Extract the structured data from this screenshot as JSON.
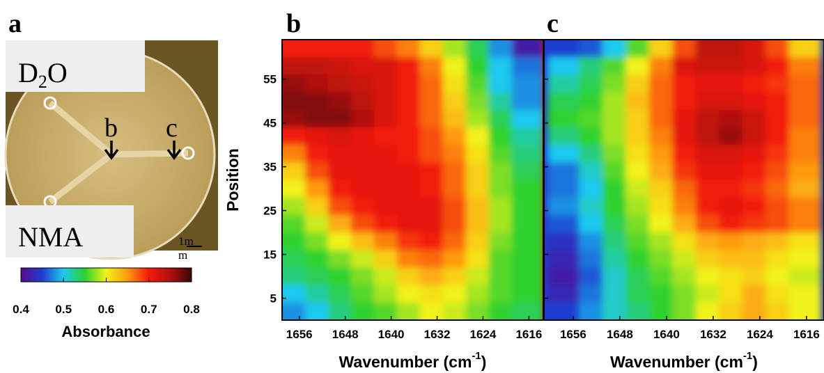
{
  "photo": {
    "panel_label": "a",
    "top_label": {
      "main": "D",
      "sub": "2",
      "end": "O"
    },
    "bottom_label": "NMA",
    "arrow_labels": [
      "b",
      "c"
    ],
    "scale_label": [
      "1m",
      "m"
    ]
  },
  "colorbar": {
    "title": "Absorbance",
    "clim": [
      0.4,
      0.8
    ],
    "ticks": [
      0.4,
      0.5,
      0.6,
      0.7,
      0.8
    ],
    "colormap": [
      "#5a0a8c",
      "#1f3ccf",
      "#1ec8f0",
      "#2ed12e",
      "#f2f21a",
      "#ff9a10",
      "#f21a0a",
      "#b01010",
      "#3a0505"
    ]
  },
  "chart_data": [
    {
      "type": "heatmap",
      "panel_label": "b",
      "xlabel": "Wavenumber (cm",
      "xlabel_sup": "-1",
      "xlabel_end": ")",
      "ylabel": "Position",
      "xlim": [
        1659,
        1613.5
      ],
      "ylim": [
        0,
        64
      ],
      "xticks": [
        1656,
        1648,
        1640,
        1632,
        1624,
        1616
      ],
      "yticks": [
        5,
        15,
        25,
        35,
        45,
        55
      ],
      "ytick_labels": true,
      "x": [
        1657,
        1653,
        1649,
        1645,
        1641,
        1637,
        1633,
        1629,
        1625,
        1621,
        1617
      ],
      "y": [
        62,
        58,
        54,
        50,
        46,
        42,
        38,
        34,
        30,
        26,
        22,
        18,
        14,
        10,
        6,
        2
      ],
      "z": [
        [
          0.7,
          0.7,
          0.7,
          0.7,
          0.68,
          0.66,
          0.62,
          0.58,
          0.54,
          0.48,
          0.42
        ],
        [
          0.74,
          0.74,
          0.73,
          0.72,
          0.72,
          0.7,
          0.66,
          0.6,
          0.55,
          0.5,
          0.47
        ],
        [
          0.76,
          0.75,
          0.74,
          0.73,
          0.72,
          0.7,
          0.67,
          0.61,
          0.56,
          0.5,
          0.48
        ],
        [
          0.77,
          0.77,
          0.76,
          0.74,
          0.72,
          0.7,
          0.67,
          0.62,
          0.57,
          0.52,
          0.48
        ],
        [
          0.76,
          0.77,
          0.77,
          0.75,
          0.72,
          0.7,
          0.67,
          0.63,
          0.58,
          0.54,
          0.5
        ],
        [
          0.7,
          0.71,
          0.72,
          0.71,
          0.7,
          0.7,
          0.68,
          0.65,
          0.6,
          0.55,
          0.52
        ],
        [
          0.66,
          0.7,
          0.71,
          0.71,
          0.71,
          0.7,
          0.68,
          0.66,
          0.61,
          0.56,
          0.53
        ],
        [
          0.62,
          0.68,
          0.71,
          0.71,
          0.71,
          0.71,
          0.7,
          0.67,
          0.62,
          0.57,
          0.54
        ],
        [
          0.6,
          0.65,
          0.7,
          0.71,
          0.71,
          0.71,
          0.7,
          0.67,
          0.62,
          0.57,
          0.55
        ],
        [
          0.58,
          0.62,
          0.68,
          0.7,
          0.71,
          0.71,
          0.71,
          0.68,
          0.63,
          0.58,
          0.55
        ],
        [
          0.56,
          0.59,
          0.64,
          0.68,
          0.7,
          0.71,
          0.71,
          0.68,
          0.63,
          0.58,
          0.55
        ],
        [
          0.55,
          0.57,
          0.6,
          0.63,
          0.66,
          0.69,
          0.7,
          0.67,
          0.62,
          0.57,
          0.55
        ],
        [
          0.54,
          0.55,
          0.57,
          0.59,
          0.62,
          0.66,
          0.67,
          0.65,
          0.61,
          0.56,
          0.55
        ],
        [
          0.53,
          0.54,
          0.55,
          0.57,
          0.59,
          0.62,
          0.64,
          0.62,
          0.59,
          0.56,
          0.55
        ],
        [
          0.5,
          0.52,
          0.54,
          0.56,
          0.58,
          0.6,
          0.61,
          0.6,
          0.58,
          0.56,
          0.55
        ],
        [
          0.48,
          0.5,
          0.53,
          0.55,
          0.56,
          0.58,
          0.6,
          0.59,
          0.57,
          0.55,
          0.54
        ]
      ]
    },
    {
      "type": "heatmap",
      "panel_label": "c",
      "xlabel": "Wavenumber (cm",
      "xlabel_sup": "-1",
      "xlabel_end": ")",
      "xlim": [
        1661,
        1613
      ],
      "ylim": [
        0,
        64
      ],
      "xticks": [
        1656,
        1648,
        1640,
        1632,
        1624,
        1616
      ],
      "yticks": [
        5,
        15,
        25,
        35,
        45,
        55
      ],
      "ytick_labels": false,
      "x": [
        1657,
        1653,
        1649,
        1645,
        1641,
        1637,
        1633,
        1629,
        1625,
        1621,
        1617
      ],
      "y": [
        62,
        58,
        54,
        50,
        46,
        42,
        38,
        34,
        30,
        26,
        22,
        18,
        14,
        10,
        6,
        2
      ],
      "z": [
        [
          0.45,
          0.46,
          0.5,
          0.56,
          0.62,
          0.68,
          0.74,
          0.74,
          0.72,
          0.68,
          0.62
        ],
        [
          0.5,
          0.53,
          0.56,
          0.6,
          0.66,
          0.72,
          0.73,
          0.73,
          0.72,
          0.7,
          0.66
        ],
        [
          0.52,
          0.54,
          0.57,
          0.62,
          0.67,
          0.7,
          0.71,
          0.71,
          0.7,
          0.69,
          0.67
        ],
        [
          0.54,
          0.55,
          0.58,
          0.63,
          0.67,
          0.7,
          0.72,
          0.72,
          0.71,
          0.7,
          0.67
        ],
        [
          0.55,
          0.56,
          0.58,
          0.62,
          0.67,
          0.71,
          0.74,
          0.75,
          0.73,
          0.7,
          0.67
        ],
        [
          0.53,
          0.55,
          0.58,
          0.62,
          0.66,
          0.71,
          0.74,
          0.76,
          0.73,
          0.7,
          0.66
        ],
        [
          0.5,
          0.53,
          0.57,
          0.61,
          0.65,
          0.7,
          0.72,
          0.72,
          0.71,
          0.69,
          0.66
        ],
        [
          0.47,
          0.51,
          0.56,
          0.6,
          0.64,
          0.69,
          0.71,
          0.71,
          0.7,
          0.68,
          0.65
        ],
        [
          0.47,
          0.5,
          0.55,
          0.59,
          0.62,
          0.67,
          0.7,
          0.7,
          0.69,
          0.67,
          0.64
        ],
        [
          0.48,
          0.51,
          0.55,
          0.58,
          0.61,
          0.66,
          0.7,
          0.71,
          0.7,
          0.68,
          0.66
        ],
        [
          0.46,
          0.5,
          0.54,
          0.57,
          0.6,
          0.64,
          0.68,
          0.7,
          0.69,
          0.68,
          0.66
        ],
        [
          0.44,
          0.48,
          0.53,
          0.56,
          0.58,
          0.61,
          0.64,
          0.65,
          0.64,
          0.63,
          0.61
        ],
        [
          0.43,
          0.47,
          0.52,
          0.55,
          0.57,
          0.59,
          0.62,
          0.63,
          0.63,
          0.61,
          0.6
        ],
        [
          0.42,
          0.46,
          0.51,
          0.54,
          0.56,
          0.58,
          0.6,
          0.61,
          0.62,
          0.6,
          0.59
        ],
        [
          0.43,
          0.47,
          0.51,
          0.54,
          0.55,
          0.57,
          0.59,
          0.61,
          0.64,
          0.61,
          0.6
        ],
        [
          0.45,
          0.48,
          0.51,
          0.53,
          0.55,
          0.57,
          0.6,
          0.62,
          0.64,
          0.62,
          0.6
        ]
      ]
    }
  ]
}
